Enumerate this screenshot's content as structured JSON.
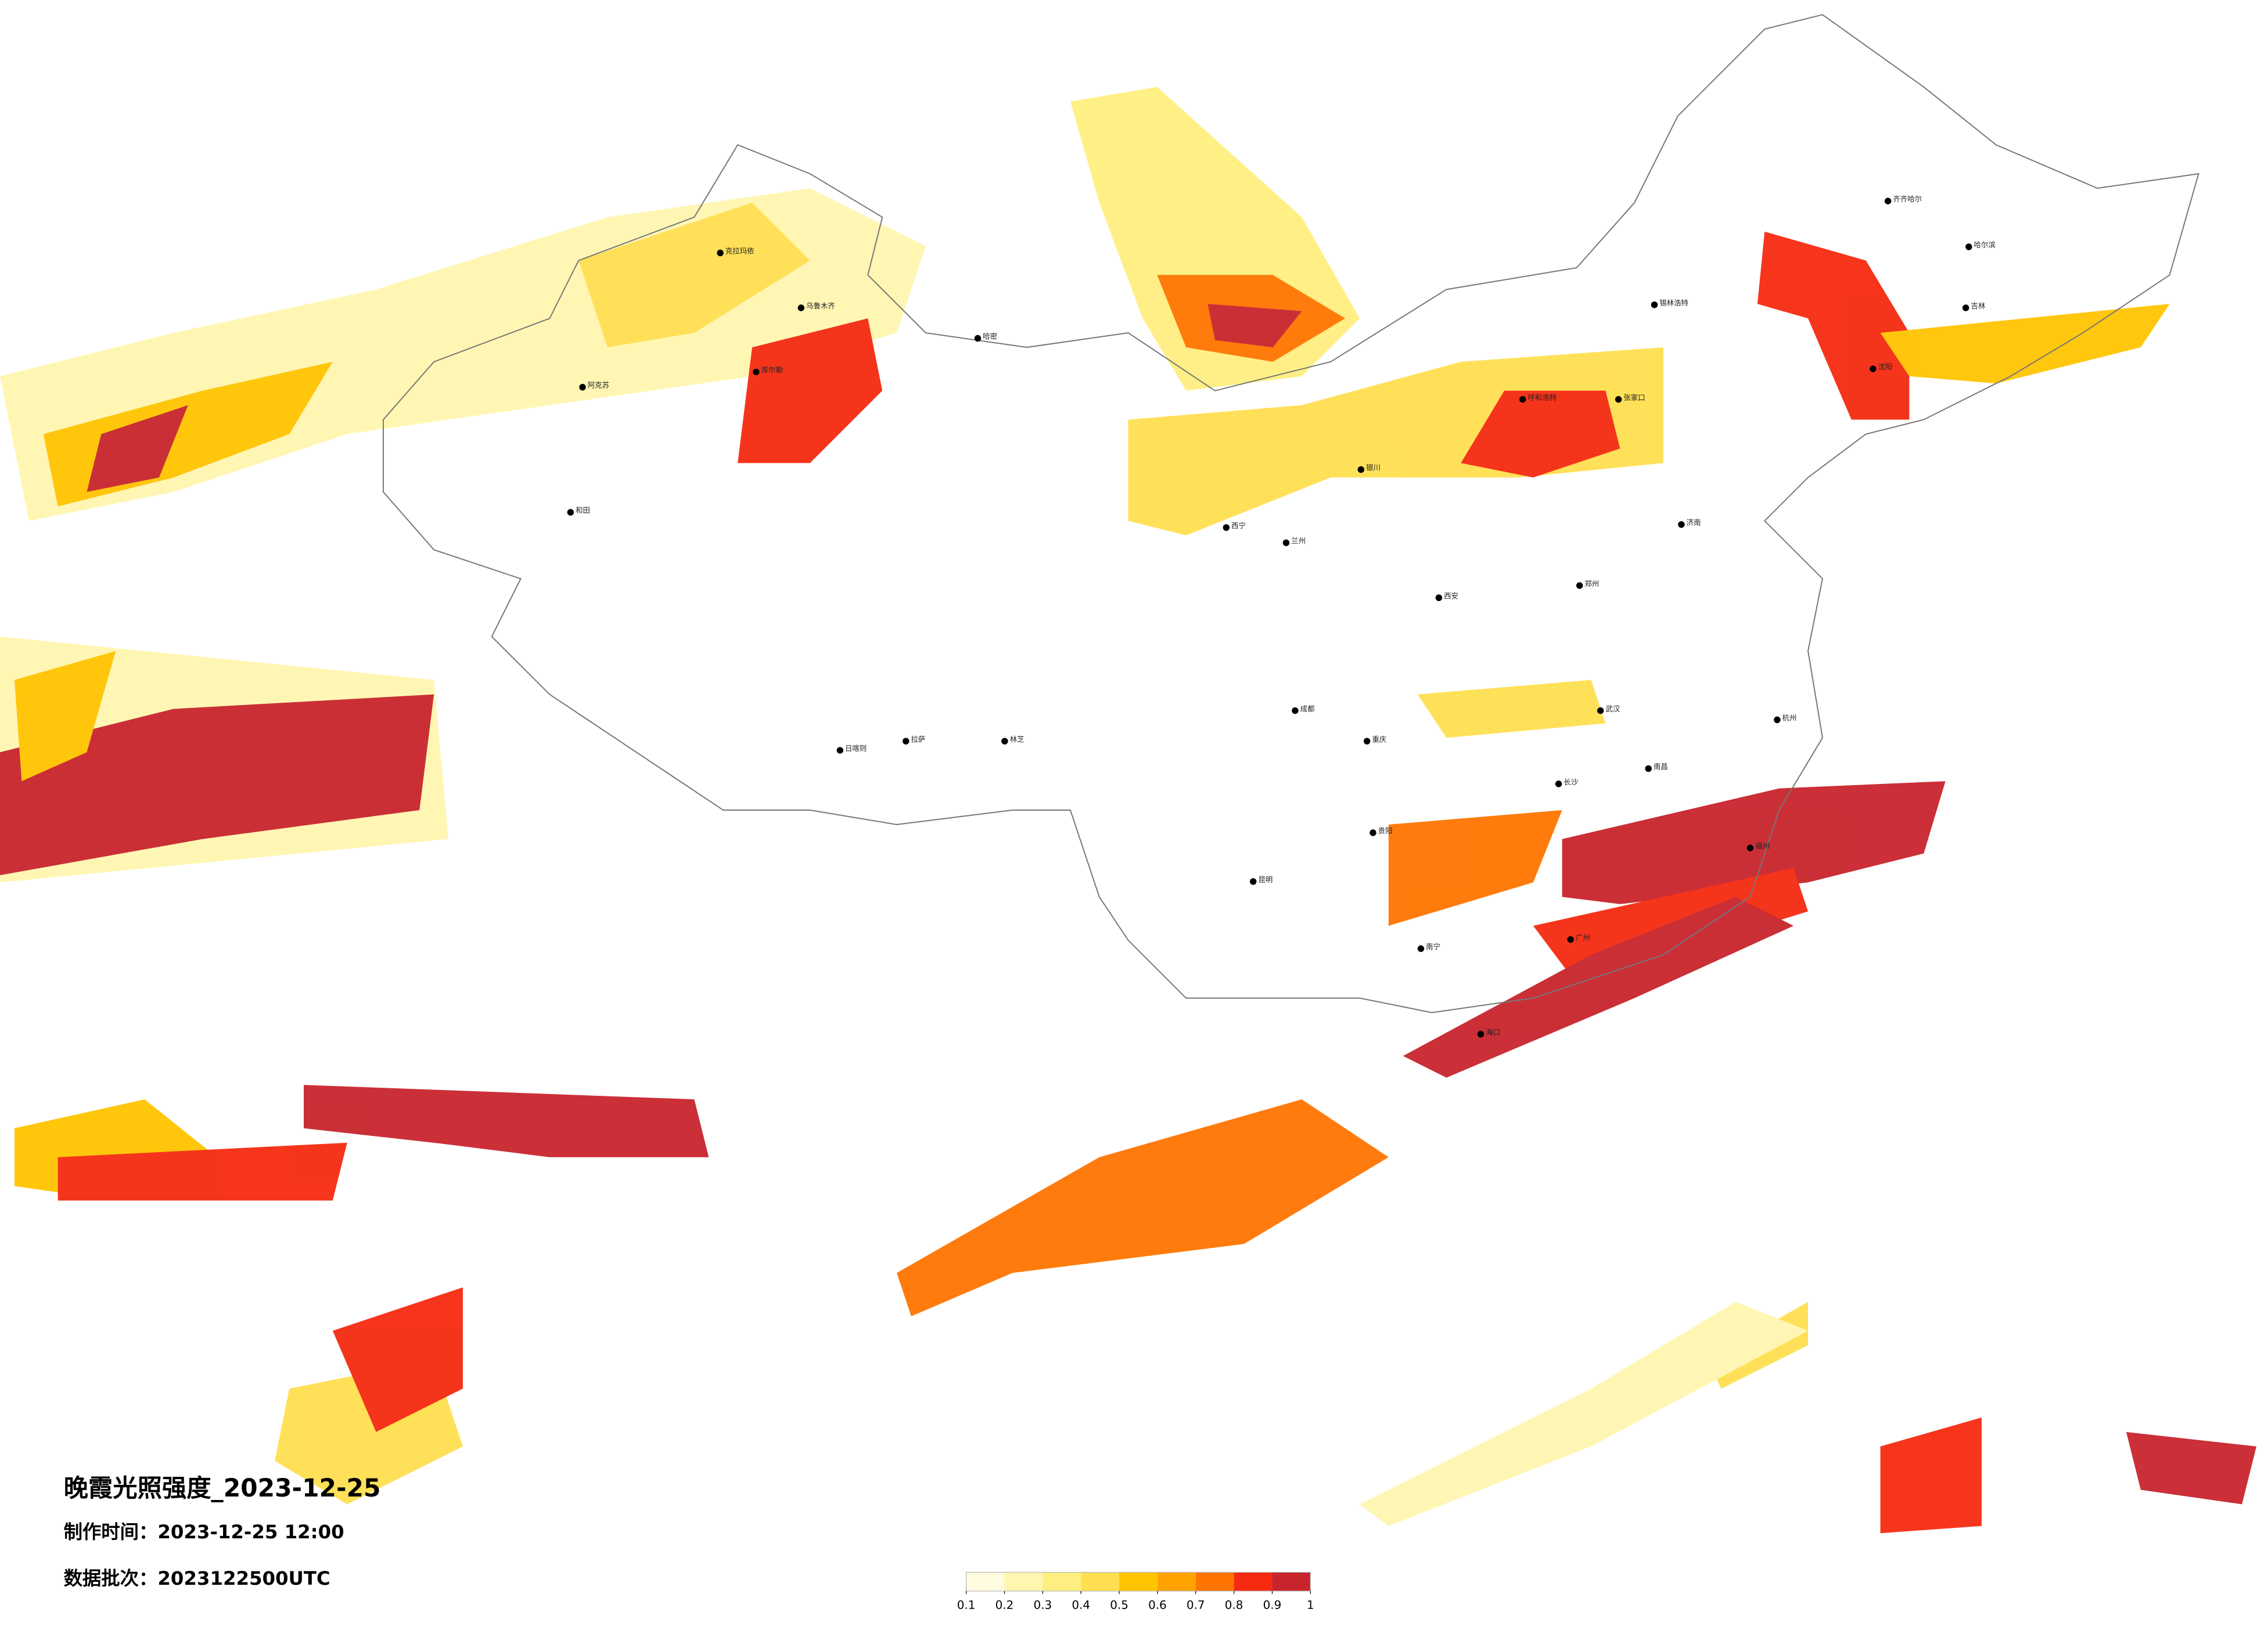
{
  "title": "晚霞光照强度_2023-12-25",
  "made_time": "制作时间：2023-12-25 12:00",
  "batch": "数据批次：2023122500UTC",
  "colorbar": {
    "colors": [
      "#fffbe0",
      "#fff6b0",
      "#ffef80",
      "#ffdf50",
      "#ffc400",
      "#ffa200",
      "#ff7400",
      "#f52a10",
      "#c8242c"
    ],
    "ticks": [
      0.1,
      0.2,
      0.3,
      0.4,
      0.5,
      0.6,
      0.7,
      0.8,
      0.9,
      1
    ]
  },
  "cities": [
    {
      "name": "乌鲁木齐",
      "lon": 87.6,
      "lat": 43.8
    },
    {
      "name": "克拉玛依",
      "lon": 84.9,
      "lat": 45.6
    },
    {
      "name": "库尔勒",
      "lon": 86.1,
      "lat": 41.7
    },
    {
      "name": "哈密",
      "lon": 93.5,
      "lat": 42.8
    },
    {
      "name": "阿克苏",
      "lon": 80.3,
      "lat": 41.2
    },
    {
      "name": "和田",
      "lon": 79.9,
      "lat": 37.1
    },
    {
      "name": "日喀则",
      "lon": 88.9,
      "lat": 29.3
    },
    {
      "name": "拉萨",
      "lon": 91.1,
      "lat": 29.6
    },
    {
      "name": "林芝",
      "lon": 94.4,
      "lat": 29.6
    },
    {
      "name": "西宁",
      "lon": 101.8,
      "lat": 36.6
    },
    {
      "name": "兰州",
      "lon": 103.8,
      "lat": 36.1
    },
    {
      "name": "银川",
      "lon": 106.3,
      "lat": 38.5
    },
    {
      "name": "呼和浩特",
      "lon": 111.7,
      "lat": 40.8
    },
    {
      "name": "张家口",
      "lon": 114.9,
      "lat": 40.8
    },
    {
      "name": "锡林浩特",
      "lon": 116.1,
      "lat": 43.9
    },
    {
      "name": "齐齐哈尔",
      "lon": 123.9,
      "lat": 47.3
    },
    {
      "name": "哈尔滨",
      "lon": 126.6,
      "lat": 45.8
    },
    {
      "name": "吉林",
      "lon": 126.5,
      "lat": 43.8
    },
    {
      "name": "沈阳",
      "lon": 123.4,
      "lat": 41.8
    },
    {
      "name": "济南",
      "lon": 117.0,
      "lat": 36.7
    },
    {
      "name": "郑州",
      "lon": 113.6,
      "lat": 34.7
    },
    {
      "name": "西安",
      "lon": 108.9,
      "lat": 34.3
    },
    {
      "name": "成都",
      "lon": 104.1,
      "lat": 30.6
    },
    {
      "name": "重庆",
      "lon": 106.5,
      "lat": 29.6
    },
    {
      "name": "武汉",
      "lon": 114.3,
      "lat": 30.6
    },
    {
      "name": "长沙",
      "lon": 112.9,
      "lat": 28.2
    },
    {
      "name": "南昌",
      "lon": 115.9,
      "lat": 28.7
    },
    {
      "name": "杭州",
      "lon": 120.2,
      "lat": 30.3
    },
    {
      "name": "福州",
      "lon": 119.3,
      "lat": 26.1
    },
    {
      "name": "贵阳",
      "lon": 106.7,
      "lat": 26.6
    },
    {
      "name": "昆明",
      "lon": 102.7,
      "lat": 25.0
    },
    {
      "name": "南宁",
      "lon": 108.3,
      "lat": 22.8
    },
    {
      "name": "广州",
      "lon": 113.3,
      "lat": 23.1
    },
    {
      "name": "海口",
      "lon": 110.3,
      "lat": 20.0
    }
  ]
}
